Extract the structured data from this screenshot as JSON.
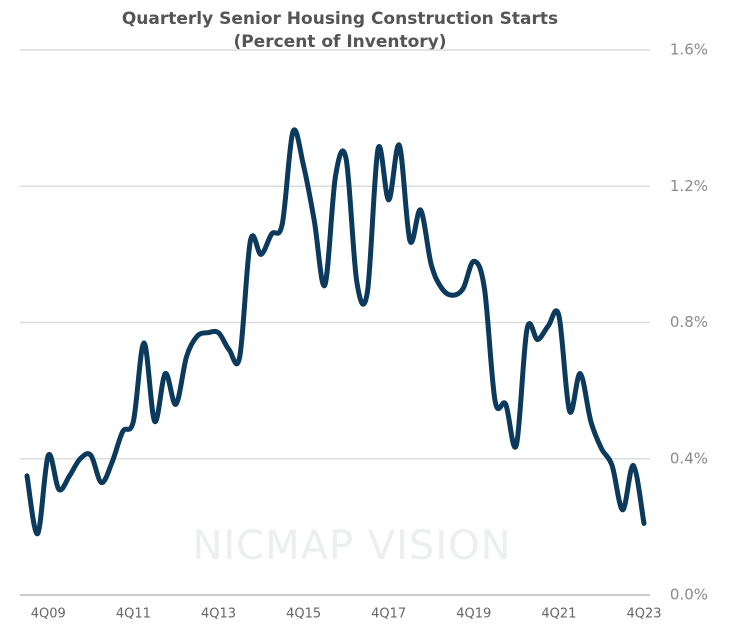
{
  "chart_data": {
    "type": "line",
    "title": "Quarterly Senior Housing Construction Starts",
    "subtitle": "(Percent of Inventory)",
    "watermark": "NICMAP VISION",
    "categories": [
      null,
      null,
      "4Q09",
      null,
      null,
      null,
      null,
      null,
      null,
      null,
      "4Q11",
      null,
      null,
      null,
      null,
      null,
      null,
      null,
      "4Q13",
      null,
      null,
      null,
      null,
      null,
      null,
      null,
      "4Q15",
      null,
      null,
      null,
      null,
      null,
      null,
      null,
      "4Q17",
      null,
      null,
      null,
      null,
      null,
      null,
      null,
      "4Q19",
      null,
      null,
      null,
      null,
      null,
      null,
      null,
      "4Q21",
      null,
      null,
      null,
      null,
      null,
      null,
      null,
      "4Q23"
    ],
    "series": [
      {
        "name": "Construction starts",
        "color": "#0b3a5c",
        "values": [
          0.35,
          0.18,
          0.41,
          0.31,
          0.35,
          0.4,
          0.41,
          0.33,
          0.39,
          0.48,
          0.51,
          0.74,
          0.51,
          0.65,
          0.56,
          0.7,
          0.76,
          0.77,
          0.77,
          0.72,
          0.7,
          1.04,
          1.0,
          1.06,
          1.09,
          1.36,
          1.26,
          1.1,
          0.91,
          1.23,
          1.28,
          0.92,
          0.89,
          1.31,
          1.16,
          1.32,
          1.04,
          1.13,
          0.97,
          0.9,
          0.88,
          0.9,
          0.98,
          0.9,
          0.57,
          0.56,
          0.44,
          0.78,
          0.75,
          0.79,
          0.82,
          0.54,
          0.65,
          0.51,
          0.43,
          0.38,
          0.25,
          0.38,
          0.21
        ]
      }
    ],
    "ylim": [
      0,
      1.6
    ],
    "yticks": [
      {
        "value": 0,
        "label": "0.0%"
      },
      {
        "value": 0.4,
        "label": "0.4%"
      },
      {
        "value": 0.8,
        "label": "0.8%"
      },
      {
        "value": 1.2,
        "label": "1.2%"
      },
      {
        "value": 1.6,
        "label": "1.6%"
      }
    ],
    "grid": true
  }
}
